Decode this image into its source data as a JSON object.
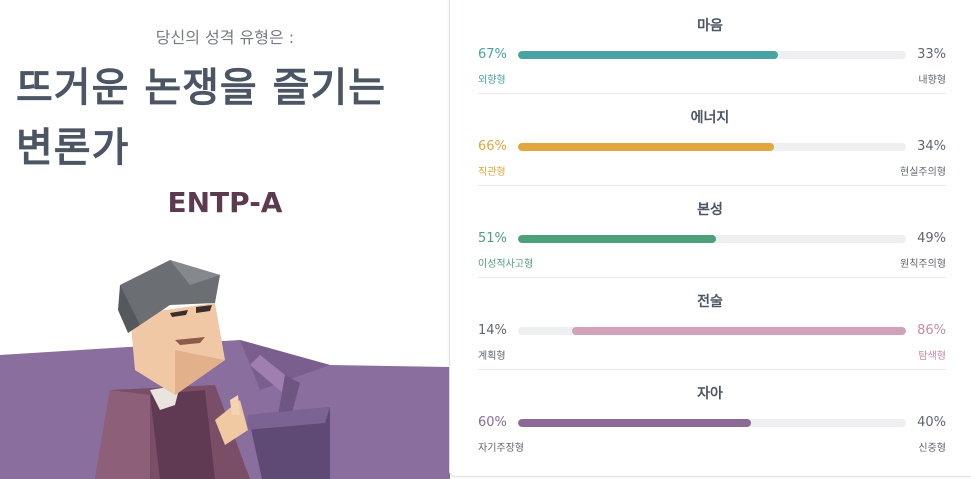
{
  "header": {
    "subtitle": "당신의 성격 유형은 :",
    "title_line1": "뜨거운 논쟁을 즐기는",
    "title_line2": "변론가",
    "code": "ENTP-A"
  },
  "colors": {
    "mind": "#4aa3a3",
    "energy": "#e3a63d",
    "nature": "#4ca07a",
    "tactics": "#d2a2b9",
    "identity": "#8b6a96",
    "muted": "#5f6670"
  },
  "traits": [
    {
      "label": "마음",
      "left_pct": "67%",
      "right_pct": "33%",
      "left_name": "외향형",
      "right_name": "내향형",
      "fill": 0.67,
      "fill_side": "left",
      "color": "#4aa3a3",
      "dominant": "left"
    },
    {
      "label": "에너지",
      "left_pct": "66%",
      "right_pct": "34%",
      "left_name": "직관형",
      "right_name": "현실주의형",
      "fill": 0.66,
      "fill_side": "left",
      "color": "#e3a63d",
      "dominant": "left"
    },
    {
      "label": "본성",
      "left_pct": "51%",
      "right_pct": "49%",
      "left_name": "이성적사고형",
      "right_name": "원칙주의형",
      "fill": 0.51,
      "fill_side": "left",
      "color": "#4ca07a",
      "dominant": "left"
    },
    {
      "label": "전술",
      "left_pct": "14%",
      "right_pct": "86%",
      "left_name": "계획형",
      "right_name": "탐색형",
      "fill": 0.86,
      "fill_side": "right",
      "color": "#d2a2b9",
      "dominant": "right"
    },
    {
      "label": "자아",
      "left_pct": "60%",
      "right_pct": "40%",
      "left_name": "자기주장형",
      "right_name": "신중형",
      "fill": 0.6,
      "fill_side": "left",
      "color": "#8b6a96",
      "dominant": "left"
    }
  ]
}
